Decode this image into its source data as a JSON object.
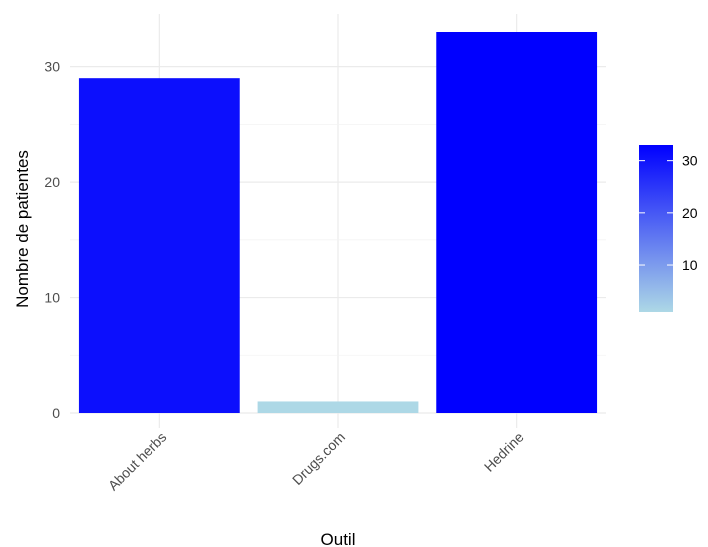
{
  "chart_data": {
    "type": "bar",
    "categories": [
      "About herbs",
      "Drugs.com",
      "Hedrine"
    ],
    "values": [
      29,
      1,
      33
    ],
    "xlabel": "Outil",
    "ylabel": "Nombre de patientes",
    "ylim": [
      0,
      33
    ],
    "yticks": [
      0,
      10,
      20,
      30
    ],
    "grid": true,
    "legend": {
      "placement": "right",
      "type": "colorbar",
      "range": [
        1,
        33
      ],
      "ticks": [
        10,
        20,
        30
      ],
      "color_low": "#add8e6",
      "color_high": "#0000ff"
    }
  }
}
